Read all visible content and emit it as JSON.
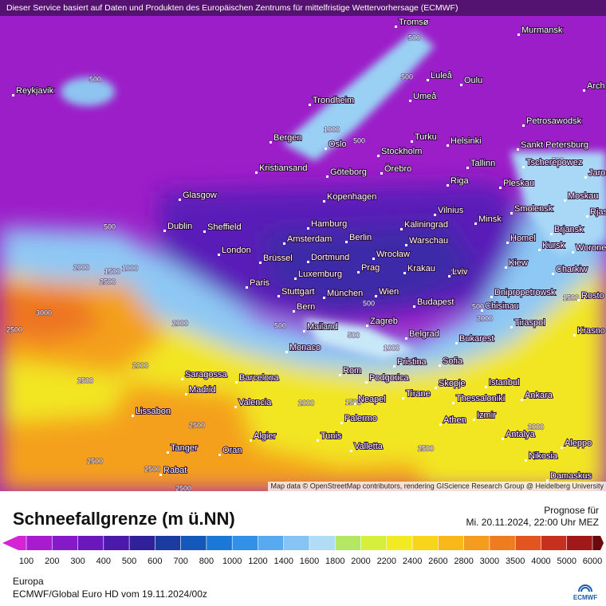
{
  "header": {
    "notice": "Dieser Service basiert auf Daten und Produkten des Europäischen Zentrums für mittelfristige Wettervorhersage (ECMWF)"
  },
  "map": {
    "cities": [
      "Tromsø",
      "Murmansk",
      "Luleå",
      "Oulu",
      "Arch",
      "Reykjavik",
      "Trondheim",
      "Umeå",
      "Petrosawodsk",
      "Bergen",
      "Oslo",
      "Turku",
      "Helsinki",
      "Sankt Petersburg",
      "Tscherepowez",
      "Stockholm",
      "Kristiansand",
      "Göteborg",
      "Örebro",
      "Tallinn",
      "Jaros",
      "Pleskau",
      "Riga",
      "Glasgow",
      "Kopenhagen",
      "Moskau",
      "Vilnius",
      "Smolensk",
      "Rjas",
      "Minsk",
      "Hamburg",
      "Kaliningrad",
      "Dublin",
      "Sheffield",
      "Brjansk",
      "Amsterdam",
      "Berlin",
      "Warschau",
      "Homel",
      "Kursk",
      "London",
      "Worone",
      "Brüssel",
      "Dortmund",
      "Wrocław",
      "Kiew",
      "Prag",
      "Krakau",
      "Lviv",
      "Charkiw",
      "Luxemburg",
      "Paris",
      "Stuttgart",
      "München",
      "Wien",
      "Dnipropetrowsk",
      "Rosto",
      "Budapest",
      "Chisinau",
      "Bern",
      "Tiraspol",
      "Zagreb",
      "Mailand",
      "Krasno",
      "Belgrad",
      "Bukarest",
      "Monaco",
      "Pristina",
      "Sofia",
      "Rom",
      "Podgorica",
      "Saragossa",
      "Barcelona",
      "Skopje",
      "Istanbul",
      "Madrid",
      "Tirane",
      "Ankara",
      "Thessaloniki",
      "Neapel",
      "Valencia",
      "Lissabon",
      "Izmir",
      "Palermo",
      "Athen",
      "Algier",
      "Tunis",
      "Antalya",
      "Aleppo",
      "Tanger",
      "Oran",
      "Valletta",
      "Nikosia",
      "Rabat",
      "Damaskus"
    ],
    "contour_labels": [
      500,
      500,
      500,
      1000,
      500,
      500,
      1000,
      1500,
      2000,
      2500,
      3000,
      2500,
      2000,
      2000,
      2500,
      2500,
      2500,
      2500,
      2500,
      500,
      500,
      500,
      1000,
      1000,
      500,
      2000,
      1500,
      2000,
      1500,
      2000,
      2500,
      500
    ],
    "attribution": "Map data © OpenStreetMap contributors, rendering GIScience Research Group @ Heidelberg University"
  },
  "legend": {
    "title": "Schneefallgrenze (m ü.NN)",
    "forecast_label": "Prognose für",
    "forecast_time": "Mi. 20.11.2024, 22:00 Uhr MEZ",
    "ticks": [
      100,
      200,
      300,
      400,
      500,
      600,
      700,
      800,
      1000,
      1200,
      1400,
      1600,
      1800,
      2000,
      2200,
      2400,
      2600,
      2800,
      3000,
      3500,
      4000,
      5000,
      6000
    ],
    "colors": [
      "#d424d4",
      "#a81cd0",
      "#861ac8",
      "#6a18bc",
      "#4c1aaa",
      "#30209a",
      "#1a3ca0",
      "#1458ba",
      "#1a78d6",
      "#3290e8",
      "#58aaf0",
      "#86c4f4",
      "#b0dcf6",
      "#b4e864",
      "#d6ee3c",
      "#f2ea22",
      "#f8d41a",
      "#f8b81c",
      "#f49c1e",
      "#ee7c20",
      "#e25420",
      "#c8301e",
      "#a0181a",
      "#6a0a0a"
    ]
  },
  "footer": {
    "region": "Europa",
    "model": "ECMWF/Global Euro HD vom  19.11.2024/00z",
    "logo": "ECMWF"
  }
}
